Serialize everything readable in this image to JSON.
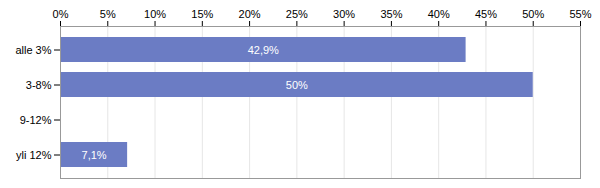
{
  "chart_data": {
    "type": "bar",
    "orientation": "horizontal",
    "categories": [
      "alle 3%",
      "3-8%",
      "9-12%",
      "yli 12%"
    ],
    "values": [
      42.9,
      50.0,
      0.0,
      7.1
    ],
    "value_labels": [
      "42,9%",
      "50%",
      null,
      "7,1%"
    ],
    "data_labels": true,
    "color": "#6b7cc4",
    "xlim": [
      0,
      55
    ],
    "xticks": [
      {
        "value": 0,
        "label": "0%"
      },
      {
        "value": 5,
        "label": "5%"
      },
      {
        "value": 10,
        "label": "10%"
      },
      {
        "value": 15,
        "label": "15%"
      },
      {
        "value": 20,
        "label": "20%"
      },
      {
        "value": 25,
        "label": "25%"
      },
      {
        "value": 30,
        "label": "30%"
      },
      {
        "value": 35,
        "label": "35%"
      },
      {
        "value": 40,
        "label": "40%"
      },
      {
        "value": 45,
        "label": "45%"
      },
      {
        "value": 50,
        "label": "50%"
      },
      {
        "value": 55,
        "label": "55%"
      }
    ],
    "grid": true
  }
}
